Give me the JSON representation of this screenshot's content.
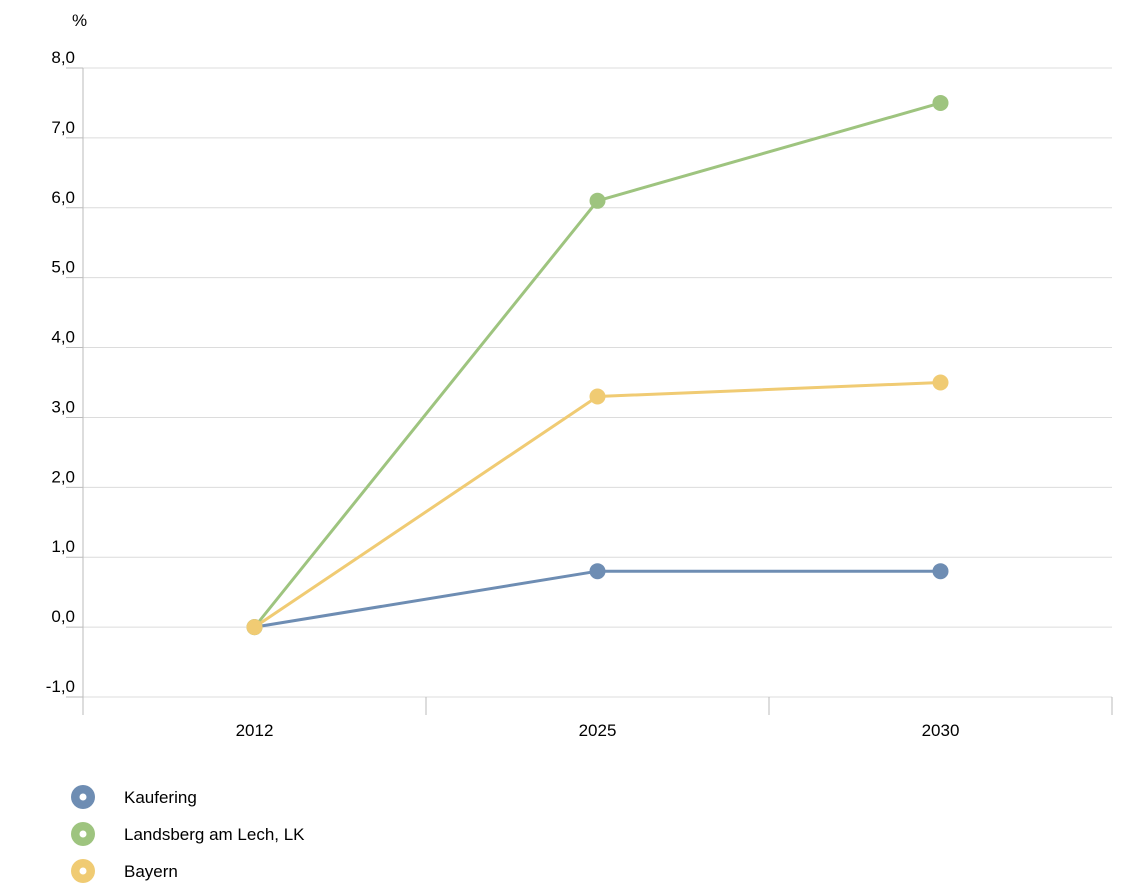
{
  "chart_data": {
    "type": "line",
    "ylabel": "%",
    "x": [
      "2012",
      "2025",
      "2030"
    ],
    "ylim": [
      -1.0,
      8.0
    ],
    "yticks": [
      "-1,0",
      "0,0",
      "1,0",
      "2,0",
      "3,0",
      "4,0",
      "5,0",
      "6,0",
      "7,0",
      "8,0"
    ],
    "grid": true,
    "legend_position": "bottom-left",
    "series": [
      {
        "name": "Kaufering",
        "values": [
          0.0,
          0.8,
          0.8
        ],
        "color": "#6e8db3"
      },
      {
        "name": "Landsberg am Lech, LK",
        "values": [
          0.0,
          6.1,
          7.5
        ],
        "color": "#9ec47f"
      },
      {
        "name": "Bayern",
        "values": [
          0.0,
          3.3,
          3.5
        ],
        "color": "#f0cb73"
      }
    ]
  }
}
